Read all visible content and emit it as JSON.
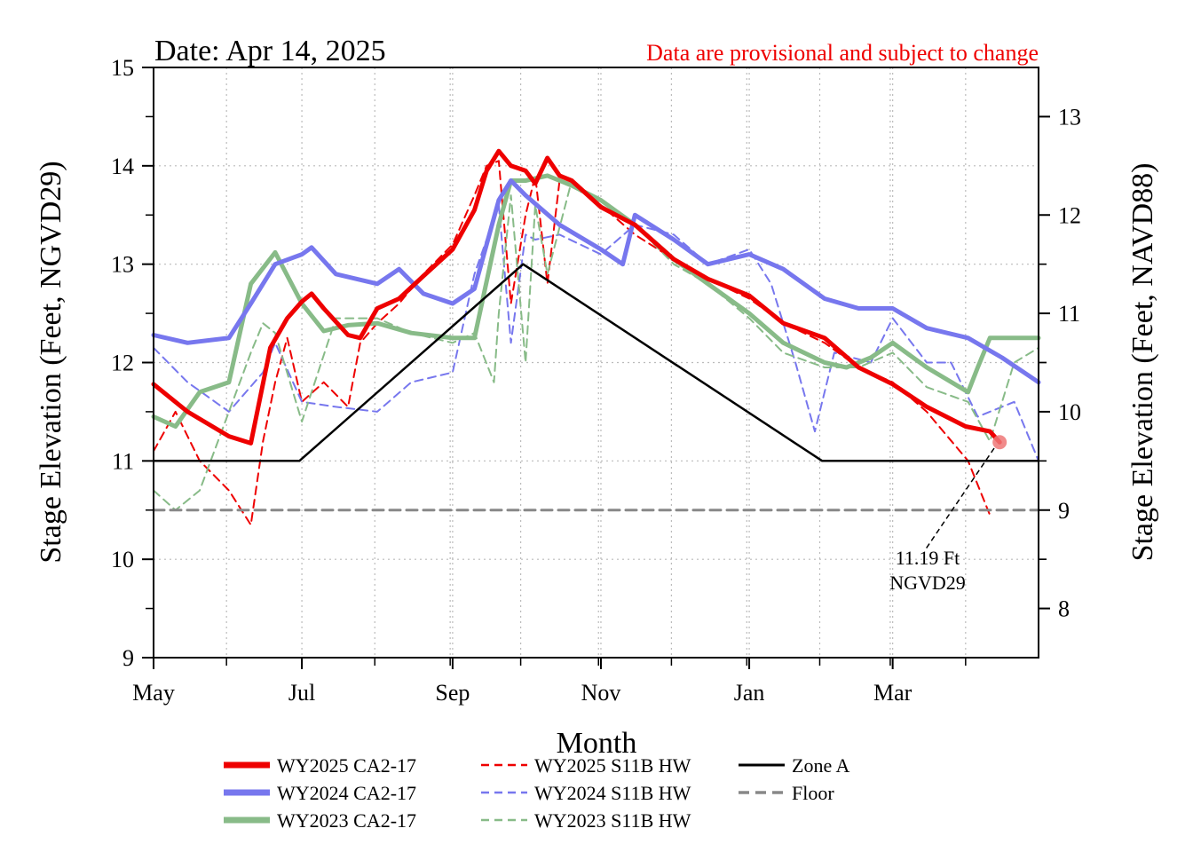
{
  "header": {
    "date_text": "Date: Apr 14, 2025",
    "disclaimer": "Data are provisional and subject to change"
  },
  "chart_data": {
    "type": "line",
    "x_axis": {
      "label": "Month",
      "start": "2024-05-01",
      "end": "2025-04-30",
      "ticks": [
        {
          "label": "May",
          "date": "2024-05-01"
        },
        {
          "label": "Jul",
          "date": "2024-07-01"
        },
        {
          "label": "Sep",
          "date": "2024-09-01"
        },
        {
          "label": "Nov",
          "date": "2024-11-01"
        },
        {
          "label": "Jan",
          "date": "2025-01-01"
        },
        {
          "label": "Mar",
          "date": "2025-03-01"
        }
      ],
      "minor_grid_dates": [
        "2024-05-31",
        "2024-07-31",
        "2024-08-31",
        "2024-09-29",
        "2024-10-31",
        "2024-11-30",
        "2024-12-31",
        "2025-01-30",
        "2025-02-28",
        "2025-03-31"
      ]
    },
    "y_left": {
      "label": "Stage Elevation (Feet, NGVD29)",
      "min": 9,
      "max": 15,
      "ticks": [
        9,
        10,
        11,
        12,
        13,
        14,
        15
      ]
    },
    "y_right": {
      "label": "Stage Elevation (Feet, NAVD88)",
      "min": 7.5,
      "max": 13.5,
      "ticks": [
        8,
        9,
        10,
        11,
        12,
        13
      ]
    },
    "grid": true,
    "series": [
      {
        "name": "WY2025 CA2-17",
        "color": "#ee0000",
        "style": "solid-thick",
        "x": [
          "2024-05-01",
          "2024-05-15",
          "2024-06-01",
          "2024-06-10",
          "2024-06-18",
          "2024-06-25",
          "2024-07-01",
          "2024-07-05",
          "2024-07-10",
          "2024-07-20",
          "2024-07-25",
          "2024-08-01",
          "2024-08-10",
          "2024-08-20",
          "2024-09-01",
          "2024-09-10",
          "2024-09-15",
          "2024-09-20",
          "2024-09-25",
          "2024-10-01",
          "2024-10-05",
          "2024-10-10",
          "2024-10-15",
          "2024-10-20",
          "2024-11-01",
          "2024-11-15",
          "2024-12-01",
          "2024-12-15",
          "2025-01-01",
          "2025-01-15",
          "2025-02-01",
          "2025-02-15",
          "2025-03-01",
          "2025-03-15",
          "2025-03-31",
          "2025-04-10",
          "2025-04-14"
        ],
        "y": [
          11.78,
          11.5,
          11.25,
          11.18,
          12.15,
          12.45,
          12.62,
          12.7,
          12.55,
          12.28,
          12.25,
          12.55,
          12.65,
          12.88,
          13.15,
          13.55,
          13.95,
          14.15,
          14.0,
          13.95,
          13.82,
          14.08,
          13.9,
          13.85,
          13.58,
          13.4,
          13.05,
          12.85,
          12.68,
          12.4,
          12.25,
          11.95,
          11.78,
          11.55,
          11.35,
          11.3,
          11.19
        ]
      },
      {
        "name": "WY2024 CA2-17",
        "color": "#7777ee",
        "style": "solid-thick",
        "x": [
          "2024-05-01",
          "2024-05-15",
          "2024-06-01",
          "2024-06-10",
          "2024-06-20",
          "2024-07-01",
          "2024-07-05",
          "2024-07-15",
          "2024-08-01",
          "2024-08-10",
          "2024-08-20",
          "2024-09-01",
          "2024-09-10",
          "2024-09-20",
          "2024-09-25",
          "2024-10-01",
          "2024-10-15",
          "2024-11-01",
          "2024-11-10",
          "2024-11-15",
          "2024-12-01",
          "2024-12-15",
          "2025-01-01",
          "2025-01-15",
          "2025-02-01",
          "2025-02-15",
          "2025-03-01",
          "2025-03-15",
          "2025-04-01",
          "2025-04-15",
          "2025-04-30"
        ],
        "y": [
          12.28,
          12.2,
          12.25,
          12.6,
          13.0,
          13.1,
          13.17,
          12.9,
          12.8,
          12.95,
          12.7,
          12.6,
          12.75,
          13.65,
          13.85,
          13.7,
          13.4,
          13.15,
          13.0,
          13.5,
          13.25,
          13.0,
          13.1,
          12.95,
          12.65,
          12.55,
          12.55,
          12.35,
          12.25,
          12.05,
          11.8
        ]
      },
      {
        "name": "WY2023 CA2-17",
        "color": "#88bb88",
        "style": "solid-thick",
        "x": [
          "2024-05-01",
          "2024-05-10",
          "2024-05-20",
          "2024-06-01",
          "2024-06-10",
          "2024-06-20",
          "2024-07-01",
          "2024-07-10",
          "2024-07-20",
          "2024-08-01",
          "2024-08-15",
          "2024-09-01",
          "2024-09-10",
          "2024-09-20",
          "2024-09-25",
          "2024-10-01",
          "2024-10-10",
          "2024-10-20",
          "2024-11-01",
          "2024-11-15",
          "2024-12-01",
          "2024-12-15",
          "2025-01-01",
          "2025-01-15",
          "2025-02-01",
          "2025-02-10",
          "2025-02-20",
          "2025-03-01",
          "2025-03-15",
          "2025-04-01",
          "2025-04-05",
          "2025-04-10",
          "2025-04-20",
          "2025-04-30"
        ],
        "y": [
          11.45,
          11.35,
          11.7,
          11.8,
          12.8,
          13.12,
          12.6,
          12.32,
          12.38,
          12.4,
          12.3,
          12.25,
          12.25,
          13.4,
          13.85,
          13.85,
          13.9,
          13.8,
          13.65,
          13.4,
          13.05,
          12.8,
          12.5,
          12.2,
          12.0,
          11.95,
          12.05,
          12.2,
          11.95,
          11.7,
          11.95,
          12.25,
          12.25,
          12.25
        ]
      },
      {
        "name": "WY2025 S11B HW",
        "color": "#ee0000",
        "style": "dashed",
        "x": [
          "2024-05-01",
          "2024-05-10",
          "2024-05-20",
          "2024-06-01",
          "2024-06-10",
          "2024-06-15",
          "2024-06-20",
          "2024-06-25",
          "2024-07-01",
          "2024-07-10",
          "2024-07-20",
          "2024-07-25",
          "2024-08-01",
          "2024-08-10",
          "2024-08-20",
          "2024-09-01",
          "2024-09-10",
          "2024-09-15",
          "2024-09-20",
          "2024-09-25",
          "2024-10-01",
          "2024-10-05",
          "2024-10-10",
          "2024-10-15",
          "2024-10-20",
          "2024-11-01",
          "2024-11-15",
          "2024-12-01",
          "2024-12-15",
          "2025-01-01",
          "2025-01-15",
          "2025-02-01",
          "2025-02-15",
          "2025-03-01",
          "2025-03-15",
          "2025-04-01",
          "2025-04-10"
        ],
        "y": [
          11.1,
          11.5,
          11.0,
          10.7,
          10.35,
          11.2,
          11.8,
          12.25,
          11.6,
          11.8,
          11.55,
          12.2,
          12.4,
          12.6,
          12.9,
          13.2,
          13.7,
          14.0,
          14.05,
          12.6,
          13.5,
          13.9,
          12.8,
          13.85,
          13.8,
          13.6,
          13.3,
          13.05,
          12.85,
          12.65,
          12.4,
          12.2,
          11.95,
          11.8,
          11.5,
          11.0,
          10.45
        ]
      },
      {
        "name": "WY2024 S11B HW",
        "color": "#7777ee",
        "style": "dashed",
        "x": [
          "2024-05-01",
          "2024-05-15",
          "2024-06-01",
          "2024-06-15",
          "2024-06-20",
          "2024-07-01",
          "2024-07-15",
          "2024-08-01",
          "2024-08-15",
          "2024-09-01",
          "2024-09-10",
          "2024-09-20",
          "2024-09-25",
          "2024-10-01",
          "2024-10-05",
          "2024-10-15",
          "2024-11-01",
          "2024-11-15",
          "2024-12-01",
          "2024-12-15",
          "2025-01-01",
          "2025-01-10",
          "2025-01-20",
          "2025-01-28",
          "2025-02-05",
          "2025-02-20",
          "2025-03-01",
          "2025-03-15",
          "2025-03-25",
          "2025-04-05",
          "2025-04-20",
          "2025-04-30"
        ],
        "y": [
          12.15,
          11.8,
          11.5,
          11.9,
          12.2,
          11.6,
          11.55,
          11.5,
          11.8,
          11.9,
          12.9,
          13.6,
          12.2,
          13.3,
          13.25,
          13.3,
          13.1,
          13.4,
          13.3,
          13.0,
          13.15,
          12.8,
          12.0,
          11.3,
          12.1,
          12.0,
          12.45,
          12.0,
          12.0,
          11.45,
          11.6,
          11.0
        ]
      },
      {
        "name": "WY2023 S11B HW",
        "color": "#88bb88",
        "style": "dashed",
        "x": [
          "2024-05-01",
          "2024-05-10",
          "2024-05-20",
          "2024-06-01",
          "2024-06-10",
          "2024-06-15",
          "2024-06-20",
          "2024-07-01",
          "2024-07-15",
          "2024-08-01",
          "2024-08-15",
          "2024-09-01",
          "2024-09-10",
          "2024-09-18",
          "2024-09-20",
          "2024-09-25",
          "2024-10-01",
          "2024-10-05",
          "2024-10-10",
          "2024-10-20",
          "2024-11-01",
          "2024-11-15",
          "2024-12-01",
          "2024-12-15",
          "2025-01-01",
          "2025-01-15",
          "2025-02-01",
          "2025-02-15",
          "2025-03-01",
          "2025-03-15",
          "2025-04-01",
          "2025-04-10",
          "2025-04-20",
          "2025-04-30"
        ],
        "y": [
          10.7,
          10.5,
          10.7,
          11.5,
          12.1,
          12.4,
          12.3,
          11.4,
          12.45,
          12.45,
          12.3,
          12.2,
          12.3,
          11.8,
          12.5,
          13.7,
          12.0,
          13.6,
          12.9,
          13.85,
          13.6,
          13.4,
          13.0,
          12.8,
          12.45,
          12.1,
          11.95,
          11.95,
          12.1,
          11.75,
          11.6,
          11.2,
          12.0,
          12.15
        ]
      },
      {
        "name": "Zone A",
        "color": "#000000",
        "style": "solid",
        "x": [
          "2024-05-01",
          "2024-06-30",
          "2024-09-30",
          "2025-01-31",
          "2025-04-30"
        ],
        "y": [
          11.0,
          11.0,
          13.0,
          11.0,
          11.0
        ]
      },
      {
        "name": "Floor",
        "color": "#888888",
        "style": "dashed-thick",
        "x": [
          "2024-05-01",
          "2025-04-30"
        ],
        "y": [
          10.5,
          10.5
        ]
      }
    ],
    "current_point": {
      "date": "2025-04-14",
      "value": 11.19,
      "color": "#ee7777"
    },
    "annotation": {
      "lines": [
        "11.19 Ft",
        "NGVD29"
      ]
    },
    "legend": {
      "placement": "bottom",
      "columns": 3
    }
  }
}
